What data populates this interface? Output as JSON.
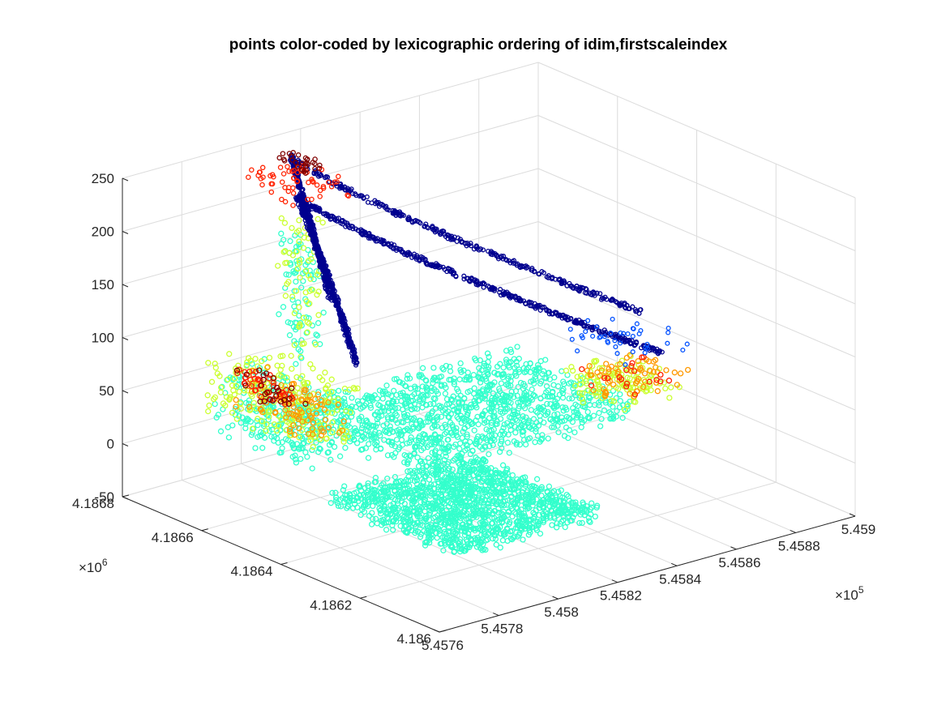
{
  "chart_data": {
    "type": "scatter",
    "title": "points color-coded by lexicographic ordering of idim,firstscaleindex",
    "xlabel": "",
    "ylabel": "",
    "zlabel": "",
    "x_axis": {
      "ticks": [
        "5.4576",
        "5.4578",
        "5.458",
        "5.4582",
        "5.4584",
        "5.4586",
        "5.4588",
        "5.459"
      ],
      "exponent_label": "×10",
      "exponent_power": "5",
      "range": [
        5.4576,
        5.459
      ]
    },
    "y_axis": {
      "ticks": [
        "4.186",
        "4.1862",
        "4.1864",
        "4.1866",
        "4.1868"
      ],
      "exponent_label": "×10",
      "exponent_power": "6",
      "range": [
        4.186,
        4.1868
      ]
    },
    "z_axis": {
      "ticks": [
        "-50",
        "0",
        "50",
        "100",
        "150",
        "200",
        "250"
      ],
      "range": [
        -50,
        250
      ]
    },
    "grid": true,
    "colormap": "jet",
    "colors": {
      "dark_blue": "#00008f",
      "blue": "#0050ff",
      "cyan": "#33ffcc",
      "yellow_green": "#ccff33",
      "orange": "#ff9900",
      "red": "#ff2200",
      "dark_red": "#800000"
    }
  }
}
